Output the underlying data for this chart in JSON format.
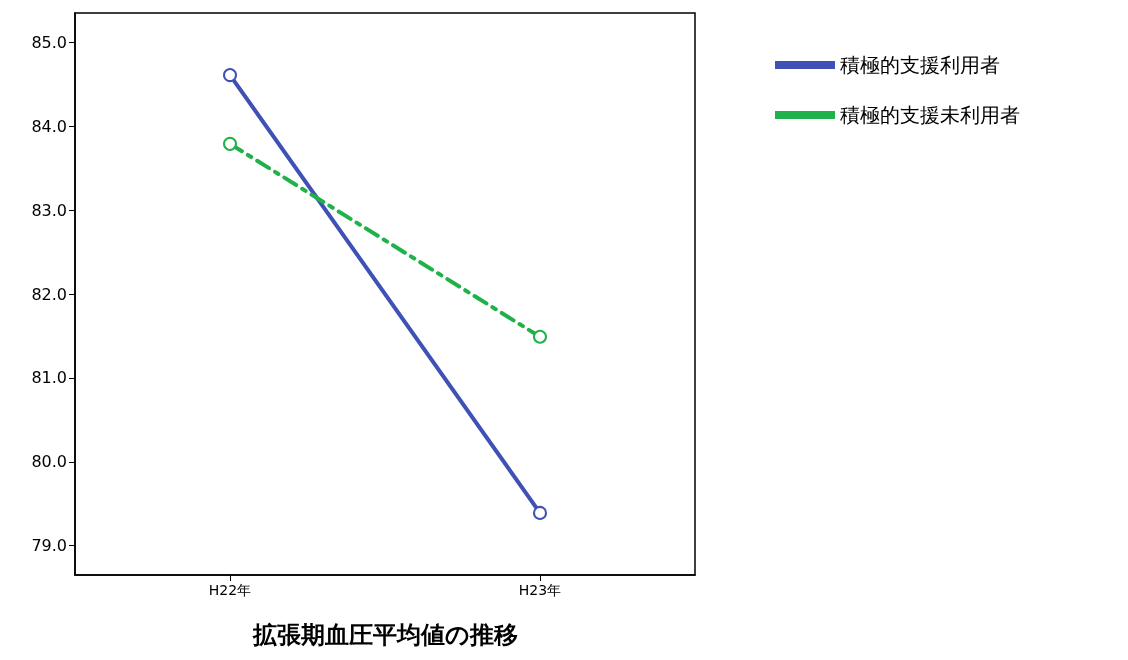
{
  "chart_data": {
    "type": "line",
    "xlabel": "拡張期血圧平均値の推移",
    "categories": [
      "H22年",
      "H23年"
    ],
    "series": [
      {
        "name": "積極的支援利用者",
        "color": "#3f51b5",
        "values": [
          84.61,
          79.39
        ],
        "line_style": "solid"
      },
      {
        "name": "積極的支援未利用者",
        "color": "#1fb24a",
        "values": [
          83.79,
          81.49
        ],
        "line_style": "dashed"
      }
    ],
    "ylim": [
      78.65,
      85.35
    ],
    "yticks": [
      {
        "value": 79,
        "label": "79.0"
      },
      {
        "value": 80,
        "label": "80.0"
      },
      {
        "value": 81,
        "label": "81.0"
      },
      {
        "value": 82,
        "label": "82.0"
      },
      {
        "value": 83,
        "label": "83.0"
      },
      {
        "value": 84,
        "label": "84.0"
      },
      {
        "value": 85,
        "label": "85.0"
      }
    ],
    "grid": false,
    "legend": "top right",
    "marker": "circle"
  }
}
